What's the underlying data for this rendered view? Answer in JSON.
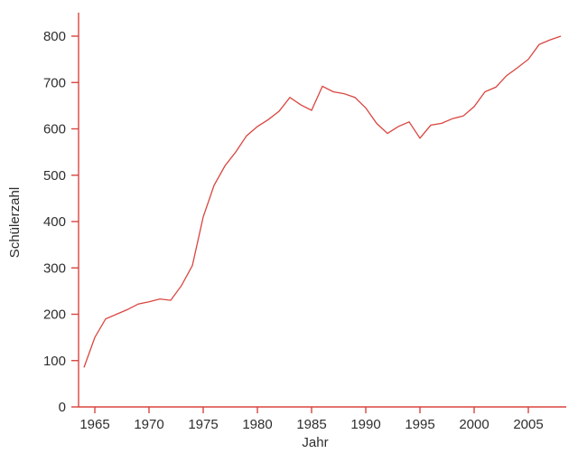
{
  "chart_data": {
    "type": "line",
    "title": "",
    "xlabel": "Jahr",
    "ylabel": "Schülerzahl",
    "grid": false,
    "legend": "none",
    "background_color": "#ffffff",
    "axis_color": "#d9453f",
    "line_color": "#d9453f",
    "text_color": "#2e2e2e",
    "xlim": [
      1963.5,
      2008.5
    ],
    "ylim": [
      0,
      800
    ],
    "x_ticks": [
      1965,
      1970,
      1975,
      1980,
      1985,
      1990,
      1995,
      2000,
      2005
    ],
    "y_ticks": [
      0,
      100,
      200,
      300,
      400,
      500,
      600,
      700,
      800
    ],
    "series": [
      {
        "name": "Schülerzahl",
        "x": [
          1964,
          1965,
          1966,
          1967,
          1968,
          1969,
          1970,
          1971,
          1972,
          1973,
          1974,
          1975,
          1976,
          1977,
          1978,
          1979,
          1980,
          1981,
          1982,
          1983,
          1984,
          1985,
          1986,
          1987,
          1988,
          1989,
          1990,
          1991,
          1992,
          1993,
          1994,
          1995,
          1996,
          1997,
          1998,
          1999,
          2000,
          2001,
          2002,
          2003,
          2004,
          2005,
          2006,
          2007,
          2008
        ],
        "values": [
          85,
          150,
          190,
          200,
          210,
          222,
          227,
          233,
          230,
          262,
          305,
          410,
          478,
          520,
          550,
          585,
          605,
          620,
          638,
          668,
          652,
          640,
          692,
          680,
          676,
          668,
          645,
          612,
          590,
          605,
          615,
          580,
          608,
          612,
          622,
          628,
          648,
          680,
          690,
          715,
          732,
          750,
          782,
          792,
          800
        ]
      }
    ]
  }
}
